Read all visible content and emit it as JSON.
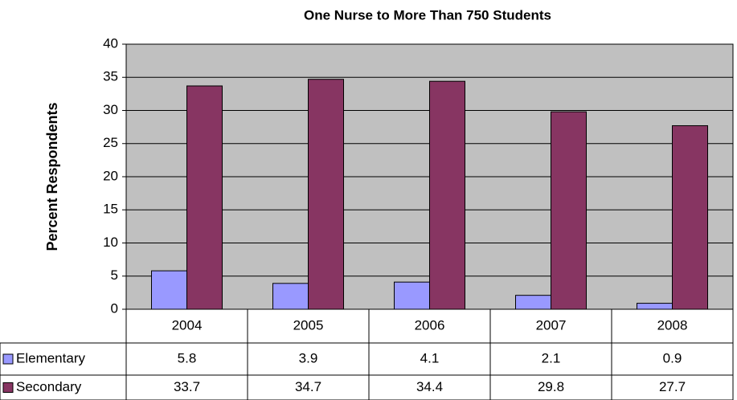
{
  "chart_data": {
    "type": "bar",
    "title": "One Nurse to More Than 750 Students",
    "ylabel": "Percent Respondents",
    "categories": [
      "2004",
      "2005",
      "2006",
      "2007",
      "2008"
    ],
    "series": [
      {
        "name": "Elementary",
        "color": "#9999ff",
        "values": [
          5.8,
          3.9,
          4.1,
          2.1,
          0.9
        ]
      },
      {
        "name": "Secondary",
        "color": "#873562",
        "values": [
          33.7,
          34.7,
          34.4,
          29.8,
          27.7
        ]
      }
    ],
    "ylim": [
      0,
      40
    ],
    "yticks": [
      0,
      5,
      10,
      15,
      20,
      25,
      30,
      35,
      40
    ],
    "grid": true,
    "plot_background": "#c0c0c0"
  }
}
